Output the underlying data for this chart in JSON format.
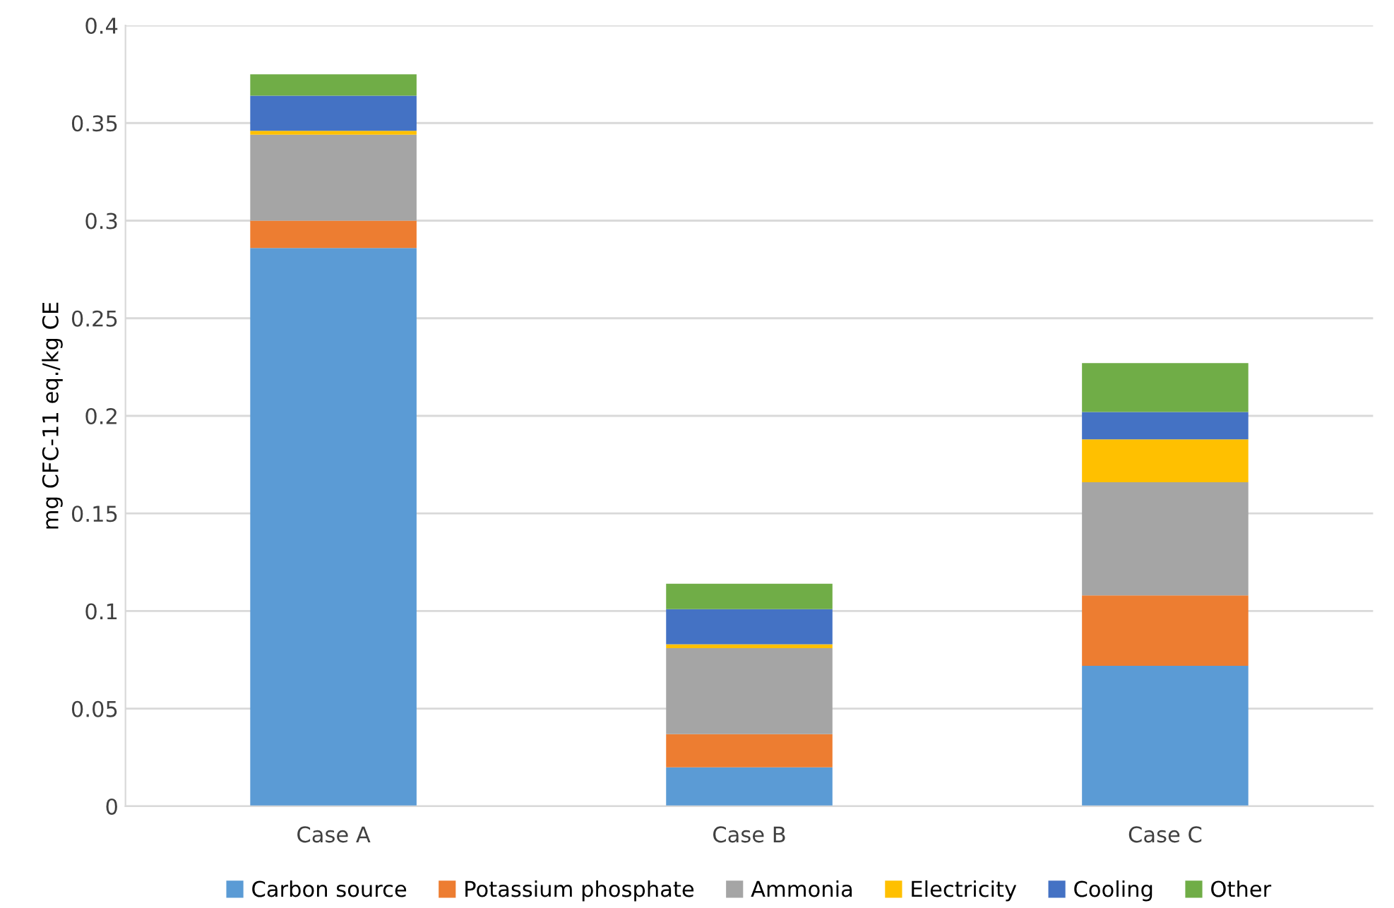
{
  "chart_data": {
    "type": "bar",
    "stacked": true,
    "ylabel": "mg CFC-11 eq./kg CE",
    "categories": [
      "Case A",
      "Case B",
      "Case C"
    ],
    "series": [
      {
        "name": "Carbon source",
        "color": "#5b9bd5",
        "values": [
          0.286,
          0.02,
          0.072
        ]
      },
      {
        "name": "Potassium phosphate",
        "color": "#ed7d31",
        "values": [
          0.014,
          0.017,
          0.036
        ]
      },
      {
        "name": "Ammonia",
        "color": "#a5a5a5",
        "values": [
          0.044,
          0.044,
          0.058
        ]
      },
      {
        "name": "Electricity",
        "color": "#ffc000",
        "values": [
          0.002,
          0.002,
          0.022
        ]
      },
      {
        "name": "Cooling",
        "color": "#4472c4",
        "values": [
          0.018,
          0.018,
          0.014
        ]
      },
      {
        "name": "Other",
        "color": "#70ad47",
        "values": [
          0.011,
          0.013,
          0.025
        ]
      }
    ],
    "ylim": [
      0,
      0.4
    ],
    "yticks": [
      0,
      {
        "value": 0.05,
        "label": "0.05"
      },
      {
        "value": 0.1,
        "label": "0.1"
      },
      {
        "value": 0.15,
        "label": "0.15"
      },
      {
        "value": 0.2,
        "label": "0.2"
      },
      {
        "value": 0.25,
        "label": "0.25"
      },
      {
        "value": 0.3,
        "label": "0.3"
      },
      {
        "value": 0.35,
        "label": "0.35"
      },
      {
        "value": 0.4,
        "label": "0.4"
      }
    ],
    "grid": "y",
    "legend": "bottom"
  }
}
